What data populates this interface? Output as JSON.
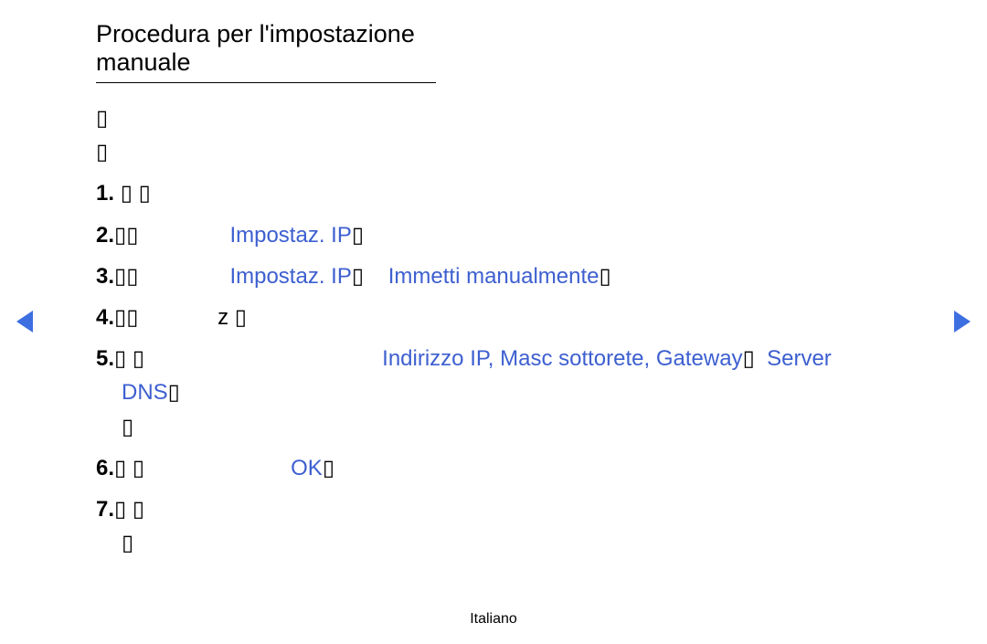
{
  "colors": {
    "highlight": "#3d5fd0",
    "text": "#000000",
    "triangle": "#3d6fe0",
    "background": "#ffffff"
  },
  "typography": {
    "title_fontsize": 27,
    "body_fontsize": 24,
    "footer_fontsize": 16,
    "line_height": 1.55
  },
  "title": "Procedura per l'impostazione manuale",
  "intro_glyph_lines": [
    "▯",
    "▯"
  ],
  "steps": [
    {
      "num": "1.",
      "pre": "▯ ▯",
      "hl1": "",
      "mid": "",
      "hl2": "",
      "post": ""
    },
    {
      "num": "2.",
      "pre": "▯▯               ",
      "hl1": "Impostaz. IP",
      "mid": "▯",
      "hl2": "",
      "post": ""
    },
    {
      "num": "3.",
      "pre": "▯▯               ",
      "hl1": "Impostaz. IP",
      "mid": "▯    ",
      "hl2": "Immetti manualmente",
      "post": "▯"
    },
    {
      "num": "4.",
      "pre": "▯▯             z ▯",
      "hl1": "",
      "mid": "",
      "hl2": "",
      "post": ""
    }
  ],
  "step5": {
    "num": "5.",
    "pre": "▯ ▯                                       ",
    "hl_a": "Indirizzo IP, Masc sottorete, Gateway",
    "mid_a": "▯  ",
    "hl_b": "Server DNS",
    "post": "▯",
    "trail": "▯"
  },
  "step6": {
    "num": "6.",
    "pre": "▯ ▯                        ",
    "hl": "OK",
    "post": "▯"
  },
  "step7": {
    "num": "7.",
    "line1": "▯ ▯",
    "line2": "▯"
  },
  "footer": "Italiano"
}
